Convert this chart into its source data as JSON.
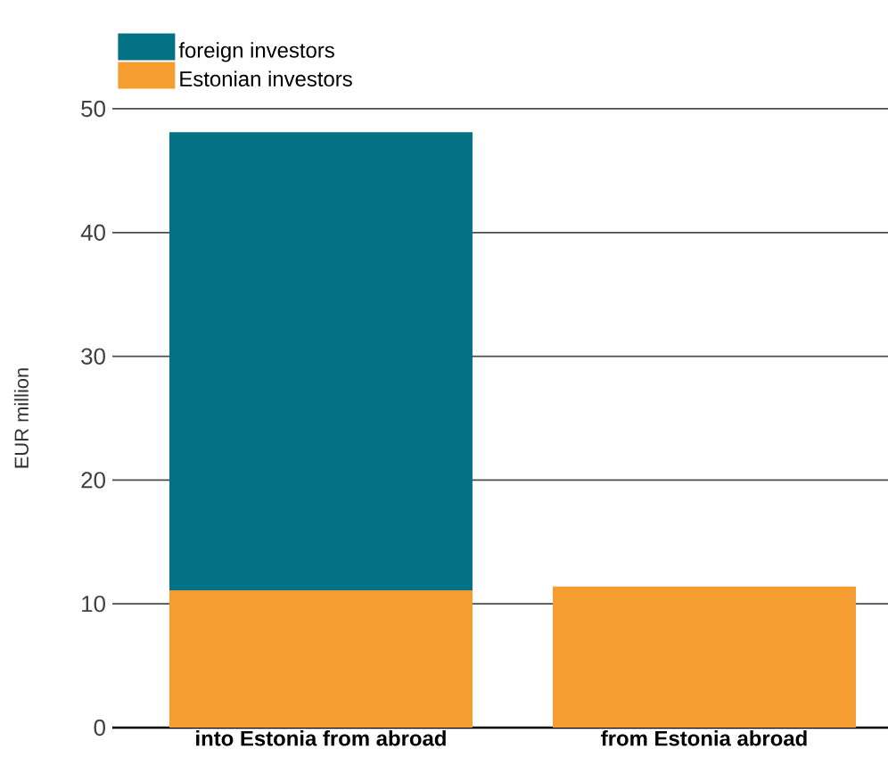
{
  "chart_data": {
    "type": "bar",
    "stacked": true,
    "ylabel": "EUR million",
    "categories": [
      "into Estonia from abroad",
      "from Estonia abroad"
    ],
    "series": [
      {
        "name": "Estonian investors",
        "color": "#f59d30",
        "values": [
          11.1,
          11.4
        ]
      },
      {
        "name": "foreign investors",
        "color": "#037186",
        "values": [
          37.0,
          null
        ]
      }
    ],
    "ylim": [
      0,
      50
    ],
    "yticks": [
      0,
      10,
      20,
      30,
      40,
      50
    ],
    "grid": "y",
    "legend": "top left"
  }
}
